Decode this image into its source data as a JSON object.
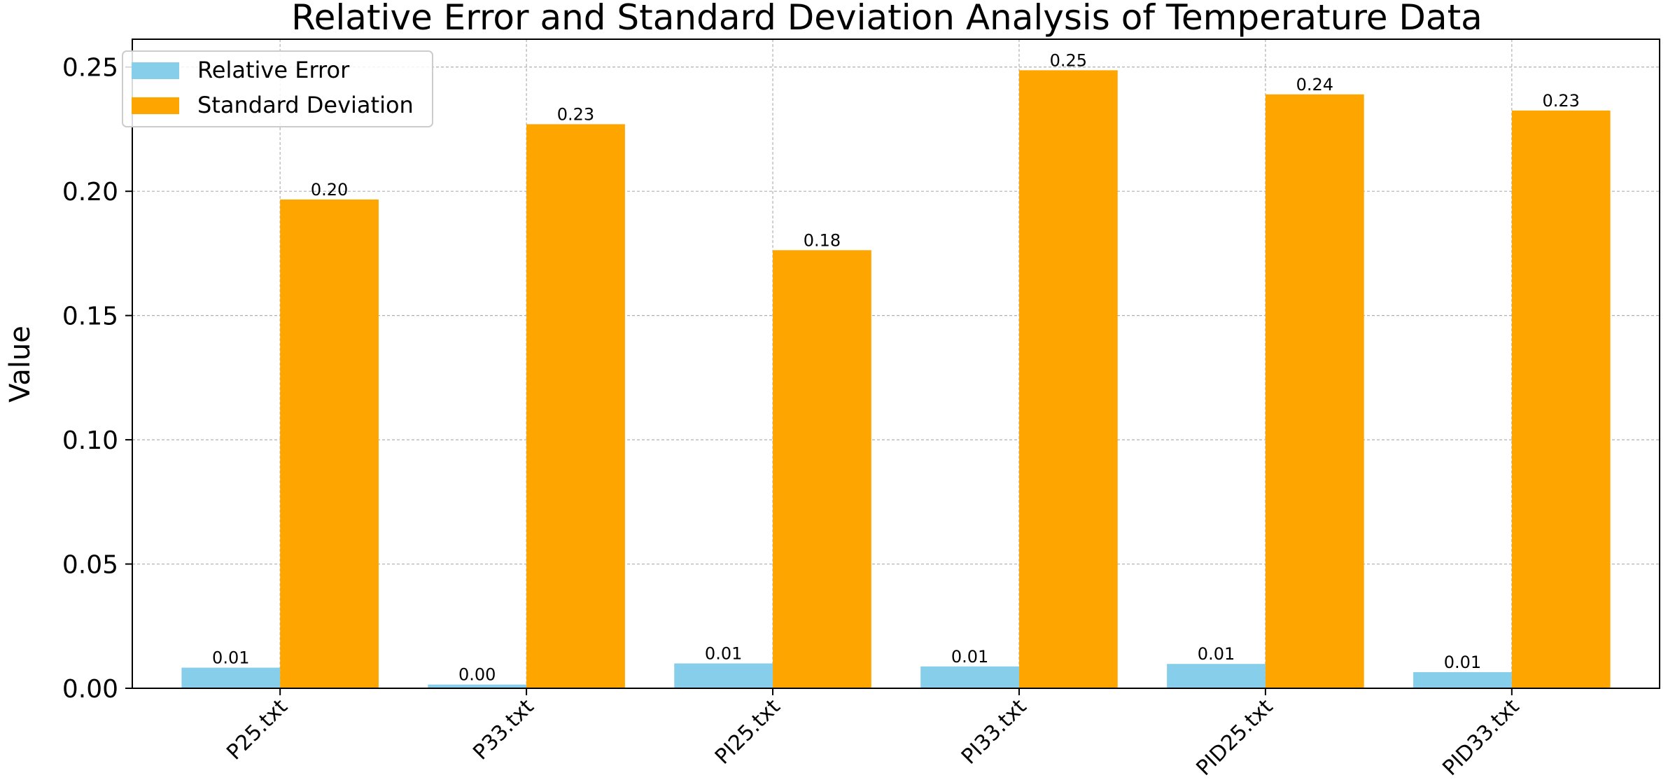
{
  "chart_data": {
    "type": "bar",
    "title": "Relative Error and Standard Deviation Analysis of Temperature Data",
    "xlabel": "",
    "ylabel": "Value",
    "categories": [
      "P25.txt",
      "P33.txt",
      "PI25.txt",
      "PI33.txt",
      "PID25.txt",
      "PID33.txt"
    ],
    "series": [
      {
        "name": "Relative Error",
        "color": "#87ceeb",
        "values": [
          0.0083,
          0.0015,
          0.01,
          0.0088,
          0.0098,
          0.0065
        ],
        "labels": [
          "0.01",
          "0.00",
          "0.01",
          "0.01",
          "0.01",
          "0.01"
        ]
      },
      {
        "name": "Standard Deviation",
        "color": "#ffa500",
        "values": [
          0.1967,
          0.227,
          0.1763,
          0.2487,
          0.239,
          0.2325
        ],
        "labels": [
          "0.20",
          "0.23",
          "0.18",
          "0.25",
          "0.24",
          "0.23"
        ]
      }
    ],
    "ylim": [
      0,
      0.2612
    ],
    "yticks": [
      0.0,
      0.05,
      0.1,
      0.15,
      0.2,
      0.25
    ],
    "ytick_labels": [
      "0.00",
      "0.05",
      "0.10",
      "0.15",
      "0.20",
      "0.25"
    ],
    "grid": true,
    "legend_position": "upper-left",
    "xtick_rotation": -45
  }
}
